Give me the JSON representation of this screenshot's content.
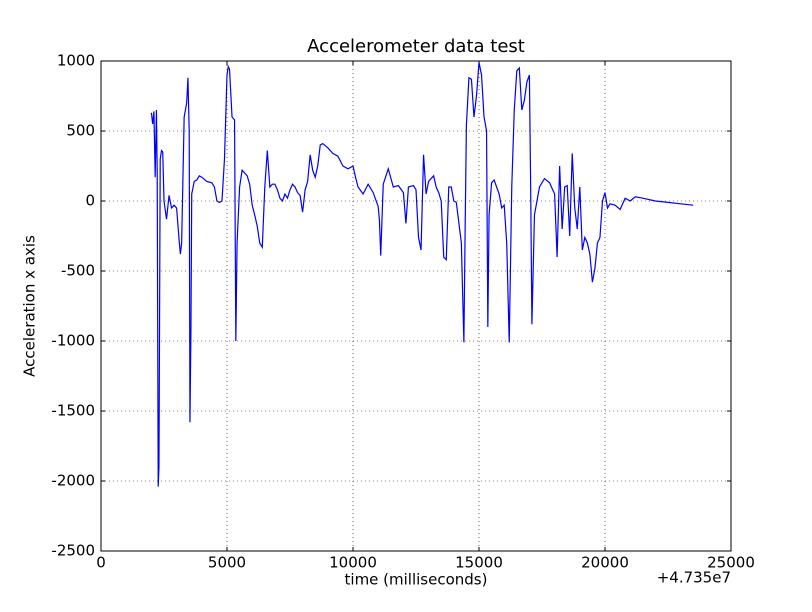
{
  "chart_data": {
    "type": "line",
    "title": "Accelerometer data test",
    "x_label": "time (milliseconds)",
    "y_label": "Acceleration x axis",
    "x_offset_label": "+4.735e7",
    "color": "#0000ff",
    "grid": true,
    "xlim": [
      0,
      25000
    ],
    "xticks": [
      0,
      5000,
      10000,
      15000,
      20000,
      25000
    ],
    "ylim": [
      -2500,
      1000
    ],
    "yticks": [
      -2500,
      -2000,
      -1500,
      -1000,
      -500,
      0,
      500,
      1000
    ],
    "x": [
      2000,
      2050,
      2100,
      2150,
      2200,
      2230,
      2270,
      2300,
      2350,
      2400,
      2450,
      2500,
      2600,
      2700,
      2800,
      2900,
      3000,
      3100,
      3150,
      3200,
      3300,
      3400,
      3450,
      3500,
      3530,
      3570,
      3600,
      3700,
      3800,
      3900,
      4000,
      4200,
      4400,
      4500,
      4600,
      4700,
      4800,
      4900,
      5000,
      5050,
      5100,
      5200,
      5300,
      5350,
      5400,
      5500,
      5600,
      5700,
      5800,
      5900,
      6000,
      6100,
      6200,
      6300,
      6400,
      6500,
      6600,
      6700,
      6800,
      6900,
      7000,
      7100,
      7200,
      7300,
      7400,
      7500,
      7600,
      7700,
      7800,
      7900,
      8000,
      8100,
      8200,
      8300,
      8400,
      8500,
      8600,
      8700,
      8800,
      9000,
      9200,
      9400,
      9600,
      9800,
      10000,
      10100,
      10200,
      10400,
      10600,
      10800,
      11000,
      11050,
      11100,
      11200,
      11400,
      11600,
      11800,
      12000,
      12100,
      12200,
      12400,
      12500,
      12600,
      12700,
      12800,
      12900,
      13000,
      13200,
      13300,
      13400,
      13500,
      13600,
      13700,
      13800,
      13900,
      14000,
      14100,
      14300,
      14400,
      14450,
      14500,
      14600,
      14700,
      14800,
      14900,
      15000,
      15100,
      15200,
      15300,
      15350,
      15400,
      15500,
      15600,
      15700,
      15800,
      15900,
      16000,
      16100,
      16200,
      16300,
      16400,
      16500,
      16600,
      16700,
      16800,
      16900,
      17000,
      17050,
      17100,
      17200,
      17400,
      17600,
      17800,
      18000,
      18100,
      18200,
      18300,
      18400,
      18500,
      18600,
      18700,
      18800,
      18900,
      19000,
      19100,
      19200,
      19300,
      19400,
      19500,
      19600,
      19700,
      19800,
      19900,
      20000,
      20100,
      20200,
      20400,
      20600,
      20800,
      21000,
      21200,
      21500,
      22000,
      22500,
      23000,
      23500
    ],
    "values": [
      630,
      550,
      640,
      170,
      650,
      200,
      -2040,
      -1900,
      300,
      360,
      350,
      0,
      -130,
      40,
      -50,
      -30,
      -50,
      -280,
      -380,
      -300,
      600,
      700,
      880,
      500,
      -1580,
      -900,
      50,
      140,
      150,
      180,
      170,
      140,
      130,
      100,
      0,
      -10,
      0,
      300,
      900,
      960,
      940,
      600,
      580,
      -1000,
      -300,
      100,
      220,
      200,
      180,
      120,
      -30,
      -100,
      -180,
      -300,
      -330,
      100,
      360,
      100,
      120,
      120,
      80,
      20,
      0,
      50,
      20,
      80,
      120,
      100,
      60,
      40,
      -80,
      80,
      140,
      330,
      220,
      170,
      250,
      400,
      410,
      380,
      340,
      320,
      250,
      230,
      250,
      170,
      100,
      50,
      120,
      60,
      -40,
      -140,
      -390,
      120,
      230,
      100,
      110,
      60,
      -160,
      100,
      110,
      80,
      -260,
      -350,
      330,
      50,
      140,
      180,
      100,
      60,
      0,
      -400,
      -420,
      100,
      100,
      0,
      -10,
      -300,
      -1010,
      -200,
      540,
      880,
      870,
      600,
      750,
      990,
      900,
      600,
      500,
      -900,
      -100,
      130,
      150,
      100,
      50,
      -50,
      -30,
      -300,
      -1010,
      100,
      650,
      930,
      950,
      650,
      720,
      850,
      900,
      100,
      -880,
      -100,
      100,
      160,
      130,
      50,
      -400,
      250,
      -200,
      100,
      110,
      -250,
      340,
      -50,
      -200,
      100,
      -350,
      -260,
      -300,
      -380,
      -580,
      -480,
      -300,
      -260,
      0,
      60,
      -50,
      -20,
      -30,
      -60,
      20,
      0,
      30,
      20,
      0,
      -10,
      -20,
      -30
    ]
  }
}
